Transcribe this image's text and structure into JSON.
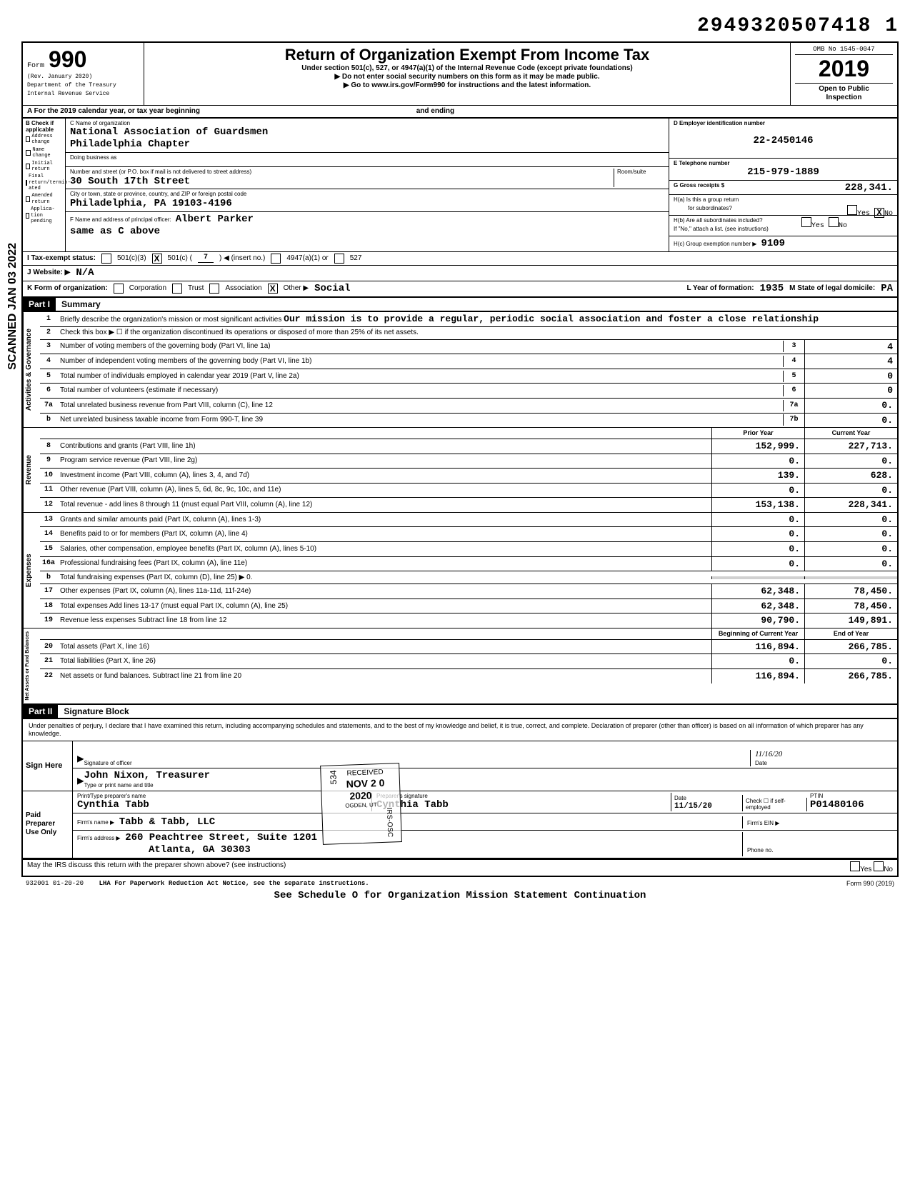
{
  "tracking_number": "2949320507418 1",
  "header": {
    "form_word": "Form",
    "form_num": "990",
    "rev": "(Rev. January 2020)",
    "dept": "Department of the Treasury",
    "irs": "Internal Revenue Service",
    "title": "Return of Organization Exempt From Income Tax",
    "subtitle": "Under section 501(c), 527, or 4947(a)(1) of the Internal Revenue Code (except private foundations)",
    "arrow1": "▶ Do not enter social security numbers on this form as it may be made public.",
    "arrow2": "▶ Go to www.irs.gov/Form990 for instructions and the latest information.",
    "omb": "OMB No 1545-0047",
    "year": "2019",
    "open": "Open to Public",
    "inspection": "Inspection"
  },
  "row_a": {
    "label": "A For the 2019 calendar year, or tax year beginning",
    "ending": "and ending"
  },
  "b_checks": {
    "header": "B Check if applicable",
    "items": [
      "Address change",
      "Name change",
      "Initial return",
      "Final return/termin-ated",
      "Amended return",
      "Applica-tion pending"
    ]
  },
  "c": {
    "label": "C Name of organization",
    "name": "National Association of Guardsmen",
    "chapter": "Philadelphia Chapter",
    "dba_label": "Doing business as",
    "street_label": "Number and street (or P.O. box if mail is not delivered to street address)",
    "street": "30 South 17th Street",
    "room_label": "Room/suite",
    "city_label": "City or town, state or province, country, and ZIP or foreign postal code",
    "city": "Philadelphia, PA  19103-4196",
    "f_label": "F Name and address of principal officer:",
    "f_name": "Albert Parker",
    "f_addr": "same as C above"
  },
  "d": {
    "label": "D Employer identification number",
    "ein": "22-2450146",
    "e_label": "E Telephone number",
    "phone": "215-979-1889",
    "g_label": "G Gross receipts $",
    "g_val": "228,341.",
    "ha_label": "H(a) Is this a group return",
    "ha_sub": "for subordinates?",
    "yes": "Yes",
    "no_x": "X",
    "no": "No",
    "hb_label": "H(b) Are all subordinates included?",
    "hb_note": "If \"No,\" attach a list. (see instructions)",
    "hc_label": "H(c) Group exemption number ▶",
    "hc_val": "9109"
  },
  "i": {
    "label": "I Tax-exempt status:",
    "opts": [
      "501(c)(3)",
      "501(c) (",
      "7",
      ") ◀ (insert no.)",
      "4947(a)(1) or",
      "527"
    ],
    "checked_idx": 1
  },
  "j": {
    "label": "J Website: ▶",
    "val": "N/A"
  },
  "k": {
    "label": "K Form of organization:",
    "opts": [
      "Corporation",
      "Trust",
      "Association",
      "Other ▶"
    ],
    "other_val": "Social",
    "l_label": "L Year of formation:",
    "l_val": "1935",
    "m_label": "M State of legal domicile:",
    "m_val": "PA"
  },
  "part1": {
    "part": "Part I",
    "title": "Summary",
    "groups": [
      {
        "side": "Activities & Governance",
        "lines": [
          {
            "n": "1",
            "t": "Briefly describe the organization's mission or most significant activities",
            "free": "Our mission is to provide a regular, periodic social association and foster a close relationship"
          },
          {
            "n": "2",
            "t": "Check this box ▶ ☐ if the organization discontinued its operations or disposed of more than 25% of its net assets."
          },
          {
            "n": "3",
            "t": "Number of voting members of the governing body (Part VI, line 1a)",
            "box": "3",
            "v2": "4"
          },
          {
            "n": "4",
            "t": "Number of independent voting members of the governing body (Part VI, line 1b)",
            "box": "4",
            "v2": "4"
          },
          {
            "n": "5",
            "t": "Total number of individuals employed in calendar year 2019 (Part V, line 2a)",
            "box": "5",
            "v2": "0"
          },
          {
            "n": "6",
            "t": "Total number of volunteers (estimate if necessary)",
            "box": "6",
            "v2": "0"
          },
          {
            "n": "7a",
            "t": "Total unrelated business revenue from Part VIII, column (C), line 12",
            "box": "7a",
            "v2": "0."
          },
          {
            "n": "b",
            "t": "Net unrelated business taxable income from Form 990-T, line 39",
            "box": "7b",
            "v2": "0."
          }
        ]
      }
    ],
    "two_col_header": {
      "c1": "Prior Year",
      "c2": "Current Year"
    },
    "rev_side": "Revenue",
    "rev_lines": [
      {
        "n": "8",
        "t": "Contributions and grants (Part VIII, line 1h)",
        "v1": "152,999.",
        "v2": "227,713."
      },
      {
        "n": "9",
        "t": "Program service revenue (Part VIII, line 2g)",
        "v1": "0.",
        "v2": "0."
      },
      {
        "n": "10",
        "t": "Investment income (Part VIII, column (A), lines 3, 4, and 7d)",
        "v1": "139.",
        "v2": "628."
      },
      {
        "n": "11",
        "t": "Other revenue (Part VIII, column (A), lines 5, 6d, 8c, 9c, 10c, and 11e)",
        "v1": "0.",
        "v2": "0."
      },
      {
        "n": "12",
        "t": "Total revenue - add lines 8 through 11 (must equal Part VIII, column (A), line 12)",
        "v1": "153,138.",
        "v2": "228,341."
      }
    ],
    "exp_side": "Expenses",
    "exp_lines": [
      {
        "n": "13",
        "t": "Grants and similar amounts paid (Part IX, column (A), lines 1-3)",
        "v1": "0.",
        "v2": "0."
      },
      {
        "n": "14",
        "t": "Benefits paid to or for members (Part IX, column (A), line 4)",
        "v1": "0.",
        "v2": "0."
      },
      {
        "n": "15",
        "t": "Salaries, other compensation, employee benefits (Part IX, column (A), lines 5-10)",
        "v1": "0.",
        "v2": "0."
      },
      {
        "n": "16a",
        "t": "Professional fundraising fees (Part IX, column (A), line 11e)",
        "v1": "0.",
        "v2": "0."
      },
      {
        "n": "b",
        "t": "Total fundraising expenses (Part IX, column (D), line 25)  ▶          0.",
        "v1": "",
        "v2": "",
        "shaded": true
      },
      {
        "n": "17",
        "t": "Other expenses (Part IX, column (A), lines 11a-11d, 11f-24e)",
        "v1": "62,348.",
        "v2": "78,450."
      },
      {
        "n": "18",
        "t": "Total expenses  Add lines 13-17 (must equal Part IX, column (A), line 25)",
        "v1": "62,348.",
        "v2": "78,450."
      },
      {
        "n": "19",
        "t": "Revenue less expenses  Subtract line 18 from line 12",
        "v1": "90,790.",
        "v2": "149,891."
      }
    ],
    "na_side": "Net Assets or Fund Balances",
    "na_header": {
      "c1": "Beginning of Current Year",
      "c2": "End of Year"
    },
    "na_lines": [
      {
        "n": "20",
        "t": "Total assets (Part X, line 16)",
        "v1": "116,894.",
        "v2": "266,785."
      },
      {
        "n": "21",
        "t": "Total liabilities (Part X, line 26)",
        "v1": "0.",
        "v2": "0."
      },
      {
        "n": "22",
        "t": "Net assets or fund balances. Subtract line 21 from line 20",
        "v1": "116,894.",
        "v2": "266,785."
      }
    ]
  },
  "part2": {
    "part": "Part II",
    "title": "Signature Block",
    "perjury": "Under penalties of perjury, I declare that I have examined this return, including accompanying schedules and statements, and to the best of my knowledge and belief, it is true, correct, and complete. Declaration of preparer (other than officer) is based on all information of which preparer has any knowledge.",
    "sign_here": "Sign Here",
    "sig_label": "Signature of officer",
    "date_label": "Date",
    "date_val": "11/16/20",
    "name_label": "Type or print name and title",
    "name_val": "John Nixon, Treasurer",
    "paid": "Paid Preparer Use Only",
    "prep_name_label": "Print/Type preparer's name",
    "prep_name": "Cynthia Tabb",
    "prep_sig_label": "Preparer's signature",
    "prep_sig": "Cynthia Tabb",
    "prep_date_label": "Date",
    "prep_date": "11/15/20",
    "check_label": "Check ☐ if self-employed",
    "ptin_label": "PTIN",
    "ptin": "P01480106",
    "firm_name_label": "Firm's name ▶",
    "firm_name": "Tabb & Tabb, LLC",
    "firm_ein_label": "Firm's EIN ▶",
    "firm_addr_label": "Firm's address ▶",
    "firm_addr": "260 Peachtree Street, Suite 1201",
    "firm_city": "Atlanta, GA 30303",
    "phone_label": "Phone no."
  },
  "footer": {
    "discuss": "May the IRS discuss this return with the preparer shown above? (see instructions)",
    "yes": "Yes",
    "no": "No",
    "code": "932001 01-20-20",
    "lha": "LHA  For Paperwork Reduction Act Notice, see the separate instructions.",
    "form": "Form 990 (2019)",
    "sched": "See Schedule O for Organization Mission Statement Continuation"
  },
  "stamp": {
    "num": "534",
    "rec": "RECEIVED",
    "date": "NOV 2 0 2020",
    "loc": "OGDEN, UT",
    "side": "IRS-OSC"
  },
  "styling": {
    "background": "#ffffff",
    "border_color": "#000000",
    "text_color": "#000000",
    "mono_font": "Courier New",
    "sans_font": "Arial",
    "body_fontsize": 11,
    "title_fontsize": 22,
    "form_num_fontsize": 32,
    "value_fontsize": 13,
    "border_width_outer": 2,
    "border_width_inner": 1
  }
}
